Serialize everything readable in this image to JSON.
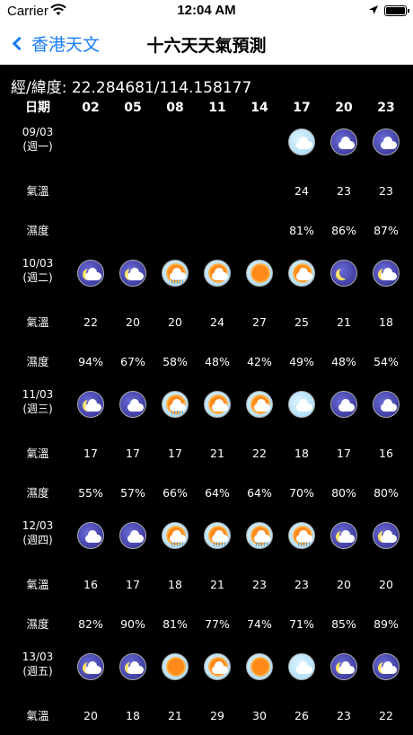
{
  "status": {
    "carrier": "Carrier",
    "time": "12:04 AM"
  },
  "nav": {
    "back_label": "香港天文",
    "title": "十六天天氣預測"
  },
  "coordinates": "經/緯度: 22.284681/114.158177",
  "columns": {
    "corner": "日期",
    "hours": [
      "02",
      "05",
      "08",
      "11",
      "14",
      "17",
      "20",
      "23"
    ]
  },
  "labels": {
    "temp": "氣溫",
    "humidity": "濕度"
  },
  "days": [
    {
      "date": "09/03",
      "weekday": "(週一)",
      "icons": [
        "",
        "",
        "",
        "",
        "",
        "day-cloud",
        "night-cloud",
        "night-cloud"
      ],
      "temps": [
        "",
        "",
        "",
        "",
        "",
        "24",
        "23",
        "23"
      ],
      "humidity": [
        "",
        "",
        "",
        "",
        "",
        "81%",
        "86%",
        "87%"
      ]
    },
    {
      "date": "10/03",
      "weekday": "(週二)",
      "icons": [
        "night-moon-cloud",
        "night-moon-cloud",
        "sun-rain",
        "sun-cloud",
        "sun",
        "sun-cloud",
        "night-moon",
        "night-moon-cloud"
      ],
      "temps": [
        "22",
        "20",
        "20",
        "24",
        "27",
        "25",
        "21",
        "18"
      ],
      "humidity": [
        "94%",
        "67%",
        "58%",
        "48%",
        "42%",
        "49%",
        "48%",
        "54%"
      ]
    },
    {
      "date": "11/03",
      "weekday": "(週三)",
      "icons": [
        "night-moon-cloud",
        "night-cloud",
        "sun-rain",
        "sun-cloud",
        "sun-cloud",
        "day-cloud",
        "night-cloud",
        "night-cloud"
      ],
      "temps": [
        "17",
        "17",
        "17",
        "21",
        "22",
        "18",
        "17",
        "16"
      ],
      "humidity": [
        "55%",
        "57%",
        "66%",
        "64%",
        "64%",
        "70%",
        "80%",
        "80%"
      ]
    },
    {
      "date": "12/03",
      "weekday": "(週四)",
      "icons": [
        "night-cloud",
        "night-cloud",
        "sun-rain",
        "sun-rain",
        "sun-rain",
        "sun-rain",
        "night-moon-cloud",
        "night-moon-cloud"
      ],
      "temps": [
        "16",
        "17",
        "18",
        "21",
        "23",
        "23",
        "20",
        "20"
      ],
      "humidity": [
        "82%",
        "90%",
        "81%",
        "77%",
        "74%",
        "71%",
        "85%",
        "89%"
      ]
    },
    {
      "date": "13/03",
      "weekday": "(週五)",
      "icons": [
        "night-moon-cloud",
        "night-moon-cloud",
        "sun",
        "sun-cloud",
        "sun",
        "day-cloud",
        "night-moon-cloud",
        "night-moon-cloud"
      ],
      "temps": [
        "20",
        "18",
        "21",
        "29",
        "30",
        "26",
        "23",
        "22"
      ],
      "humidity": []
    }
  ]
}
